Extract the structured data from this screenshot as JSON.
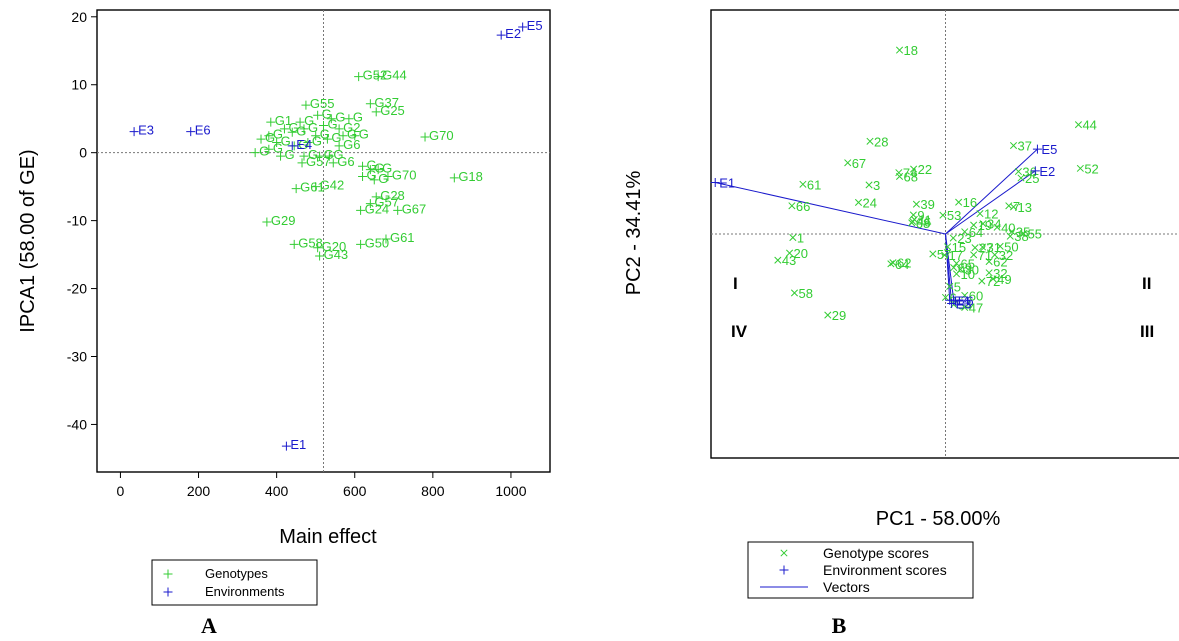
{
  "colors": {
    "genotype": "#33cc33",
    "environment": "#1a1acc",
    "axis": "#000000",
    "reference": "#777777"
  },
  "panels": {
    "a_label": "A",
    "b_label": "B"
  },
  "chart_data": [
    {
      "type": "scatter",
      "title": "",
      "xlabel": "Main effect",
      "ylabel": "IPCA1 (58.00 of GE)",
      "xlim": [
        -60,
        1100
      ],
      "ylim": [
        -47,
        21
      ],
      "xticks": [
        0,
        200,
        400,
        600,
        800,
        1000
      ],
      "yticks": [
        20,
        10,
        0,
        -10,
        -20,
        -30,
        -40
      ],
      "reference_lines": {
        "x": 520,
        "y": 0
      },
      "grid": false,
      "legend": {
        "placement": "bottom-center",
        "entries": [
          "Genotypes",
          "Environments"
        ]
      },
      "series": [
        {
          "name": "Genotypes",
          "marker": "+",
          "points": [
            {
              "label": "G52",
              "x": 610,
              "y": 11.2
            },
            {
              "label": "G44",
              "x": 660,
              "y": 11.2
            },
            {
              "label": "G55",
              "x": 475,
              "y": 7.0
            },
            {
              "label": "G37",
              "x": 640,
              "y": 7.2
            },
            {
              "label": "G25",
              "x": 655,
              "y": 6.0
            },
            {
              "label": "G70",
              "x": 780,
              "y": 2.3
            },
            {
              "label": "G2",
              "x": 560,
              "y": 3.5
            },
            {
              "label": "G",
              "x": 505,
              "y": 5.5
            },
            {
              "label": "G",
              "x": 540,
              "y": 5.0
            },
            {
              "label": "G",
              "x": 585,
              "y": 5.0
            },
            {
              "label": "G",
              "x": 420,
              "y": 3.5
            },
            {
              "label": "G",
              "x": 440,
              "y": 3.0
            },
            {
              "label": "G",
              "x": 470,
              "y": 3.5
            },
            {
              "label": "G",
              "x": 500,
              "y": 2.5
            },
            {
              "label": "G",
              "x": 530,
              "y": 2.0
            },
            {
              "label": "G",
              "x": 570,
              "y": 2.5
            },
            {
              "label": "G",
              "x": 600,
              "y": 2.5
            },
            {
              "label": "G1",
              "x": 385,
              "y": 4.5
            },
            {
              "label": "G",
              "x": 380,
              "y": 2.5
            },
            {
              "label": "G",
              "x": 400,
              "y": 1.5
            },
            {
              "label": "G",
              "x": 445,
              "y": 1.0
            },
            {
              "label": "G",
              "x": 480,
              "y": 1.5
            },
            {
              "label": "G6",
              "x": 560,
              "y": 1.0
            },
            {
              "label": "G",
              "x": 345,
              "y": 0.0
            },
            {
              "label": "G",
              "x": 380,
              "y": 0.5
            },
            {
              "label": "G",
              "x": 410,
              "y": -0.5
            },
            {
              "label": "G",
              "x": 470,
              "y": -0.5
            },
            {
              "label": "G",
              "x": 510,
              "y": -0.5
            },
            {
              "label": "G57",
              "x": 465,
              "y": -1.5
            },
            {
              "label": "G6",
              "x": 545,
              "y": -1.5
            },
            {
              "label": "G",
              "x": 535,
              "y": -0.5
            },
            {
              "label": "G",
              "x": 360,
              "y": 2.0
            },
            {
              "label": "G",
              "x": 460,
              "y": 4.5
            },
            {
              "label": "G",
              "x": 520,
              "y": 4.0
            },
            {
              "label": "G",
              "x": 620,
              "y": -2.0
            },
            {
              "label": "G",
              "x": 640,
              "y": -2.5
            },
            {
              "label": "G",
              "x": 660,
              "y": -2.5
            },
            {
              "label": "G70",
              "x": 685,
              "y": -3.5
            },
            {
              "label": "G",
              "x": 620,
              "y": -3.5
            },
            {
              "label": "G",
              "x": 650,
              "y": -4.0
            },
            {
              "label": "G18",
              "x": 855,
              "y": -3.7
            },
            {
              "label": "G61",
              "x": 450,
              "y": -5.3
            },
            {
              "label": "G42",
              "x": 500,
              "y": -5.0
            },
            {
              "label": "G28",
              "x": 655,
              "y": -6.5
            },
            {
              "label": "G57",
              "x": 640,
              "y": -7.5
            },
            {
              "label": "G24",
              "x": 615,
              "y": -8.5
            },
            {
              "label": "G67",
              "x": 710,
              "y": -8.5
            },
            {
              "label": "G29",
              "x": 375,
              "y": -10.2
            },
            {
              "label": "G58",
              "x": 445,
              "y": -13.5
            },
            {
              "label": "G20",
              "x": 505,
              "y": -14.0
            },
            {
              "label": "G50",
              "x": 615,
              "y": -13.5
            },
            {
              "label": "G61",
              "x": 680,
              "y": -12.7
            },
            {
              "label": "G43",
              "x": 510,
              "y": -15.2
            }
          ]
        },
        {
          "name": "Environments",
          "marker": "+",
          "points": [
            {
              "label": "E5",
              "x": 1030,
              "y": 18.5
            },
            {
              "label": "E2",
              "x": 975,
              "y": 17.3
            },
            {
              "label": "E3",
              "x": 35,
              "y": 3.1
            },
            {
              "label": "E6",
              "x": 180,
              "y": 3.1
            },
            {
              "label": "E4",
              "x": 440,
              "y": 1.0
            },
            {
              "label": "E1",
              "x": 425,
              "y": -43.2
            }
          ]
        }
      ]
    },
    {
      "type": "scatter",
      "title": "",
      "xlabel": "PC1 - 58.00%",
      "ylabel": "PC2 - 34.41%",
      "xlim": [
        -1,
        1
      ],
      "ylim": [
        -1,
        1
      ],
      "reference_lines": {
        "x": 0,
        "y": 0
      },
      "quadrant_labels": [
        "I",
        "II",
        "III",
        "IV"
      ],
      "grid": false,
      "legend": {
        "placement": "bottom-left",
        "entries": [
          "Genotype scores",
          "Environment scores",
          "Vectors"
        ]
      },
      "series": [
        {
          "name": "Genotype scores",
          "marker": "x",
          "points": [
            {
              "label": "18",
              "x": -0.196,
              "y": 0.821
            },
            {
              "label": "44",
              "x": 0.567,
              "y": 0.488
            },
            {
              "label": "28",
              "x": -0.322,
              "y": 0.414
            },
            {
              "label": "37",
              "x": 0.29,
              "y": 0.395
            },
            {
              "label": "67",
              "x": -0.417,
              "y": 0.318
            },
            {
              "label": "52",
              "x": 0.575,
              "y": 0.293
            },
            {
              "label": "22",
              "x": -0.136,
              "y": 0.29
            },
            {
              "label": "74",
              "x": -0.199,
              "y": 0.274
            },
            {
              "label": "68",
              "x": -0.196,
              "y": 0.257
            },
            {
              "label": "36",
              "x": 0.311,
              "y": 0.279
            },
            {
              "label": "25",
              "x": 0.322,
              "y": 0.25
            },
            {
              "label": "61",
              "x": -0.608,
              "y": 0.222
            },
            {
              "label": "3",
              "x": -0.326,
              "y": 0.219
            },
            {
              "label": "24",
              "x": -0.371,
              "y": 0.141
            },
            {
              "label": "66",
              "x": -0.655,
              "y": 0.126
            },
            {
              "label": "39",
              "x": -0.124,
              "y": 0.133
            },
            {
              "label": "16",
              "x": 0.056,
              "y": 0.142
            },
            {
              "label": "7",
              "x": 0.27,
              "y": 0.126
            },
            {
              "label": "13",
              "x": 0.29,
              "y": 0.121
            },
            {
              "label": "12",
              "x": 0.147,
              "y": 0.091
            },
            {
              "label": "53",
              "x": -0.011,
              "y": 0.084
            },
            {
              "label": "9",
              "x": -0.137,
              "y": 0.085
            },
            {
              "label": "46",
              "x": -0.14,
              "y": 0.056
            },
            {
              "label": "68",
              "x": -0.144,
              "y": 0.05
            },
            {
              "label": "11",
              "x": -0.133,
              "y": 0.065
            },
            {
              "label": "1",
              "x": -0.651,
              "y": -0.016
            },
            {
              "label": "20",
              "x": -0.665,
              "y": -0.085
            },
            {
              "label": "43",
              "x": -0.715,
              "y": -0.117
            },
            {
              "label": "58",
              "x": -0.644,
              "y": -0.263
            },
            {
              "label": "29",
              "x": -0.502,
              "y": -0.362
            },
            {
              "label": "62",
              "x": -0.224,
              "y": -0.128
            },
            {
              "label": "64",
              "x": -0.233,
              "y": -0.133
            },
            {
              "label": "57",
              "x": -0.054,
              "y": -0.089
            },
            {
              "label": "17",
              "x": -0.004,
              "y": -0.094
            },
            {
              "label": "15",
              "x": 0.009,
              "y": -0.057
            },
            {
              "label": "23",
              "x": 0.033,
              "y": -0.018
            },
            {
              "label": "64",
              "x": 0.082,
              "y": 0.01
            },
            {
              "label": "19",
              "x": 0.12,
              "y": 0.04
            },
            {
              "label": "34",
              "x": 0.16,
              "y": 0.046
            },
            {
              "label": "40",
              "x": 0.22,
              "y": 0.03
            },
            {
              "label": "35",
              "x": 0.283,
              "y": 0.011
            },
            {
              "label": "55",
              "x": 0.333,
              "y": 0.002
            },
            {
              "label": "38",
              "x": 0.276,
              "y": -0.01
            },
            {
              "label": "50",
              "x": 0.233,
              "y": -0.055
            },
            {
              "label": "27",
              "x": 0.126,
              "y": -0.061
            },
            {
              "label": "31",
              "x": 0.158,
              "y": -0.058
            },
            {
              "label": "32",
              "x": 0.21,
              "y": -0.093
            },
            {
              "label": "71",
              "x": 0.12,
              "y": -0.093
            },
            {
              "label": "62",
              "x": 0.186,
              "y": -0.123
            },
            {
              "label": "65",
              "x": 0.047,
              "y": -0.131
            },
            {
              "label": "69",
              "x": 0.035,
              "y": -0.15
            },
            {
              "label": "30",
              "x": 0.064,
              "y": -0.158
            },
            {
              "label": "32",
              "x": 0.186,
              "y": -0.173
            },
            {
              "label": "10",
              "x": 0.047,
              "y": -0.178
            },
            {
              "label": "72",
              "x": 0.155,
              "y": -0.21
            },
            {
              "label": "49",
              "x": 0.203,
              "y": -0.2
            },
            {
              "label": "5",
              "x": 0.018,
              "y": -0.234
            },
            {
              "label": "6",
              "x": 0.0,
              "y": -0.283
            },
            {
              "label": "60",
              "x": 0.082,
              "y": -0.274
            },
            {
              "label": "47",
              "x": 0.082,
              "y": -0.328
            },
            {
              "label": "54",
              "x": 0.035,
              "y": -0.315
            }
          ]
        },
        {
          "name": "Environment scores",
          "marker": "+",
          "points": [
            {
              "label": "E5",
              "x": 0.392,
              "y": 0.379
            },
            {
              "label": "E2",
              "x": 0.383,
              "y": 0.282
            },
            {
              "label": "E1",
              "x": -0.982,
              "y": 0.23
            },
            {
              "label": "E4",
              "x": 0.018,
              "y": -0.296
            },
            {
              "label": "E6",
              "x": 0.035,
              "y": -0.296
            },
            {
              "label": "E3",
              "x": 0.026,
              "y": -0.31
            }
          ]
        },
        {
          "name": "Vectors",
          "from": [
            0,
            0
          ],
          "to": [
            "E5",
            "E2",
            "E1",
            "E4",
            "E6",
            "E3"
          ]
        }
      ]
    }
  ]
}
